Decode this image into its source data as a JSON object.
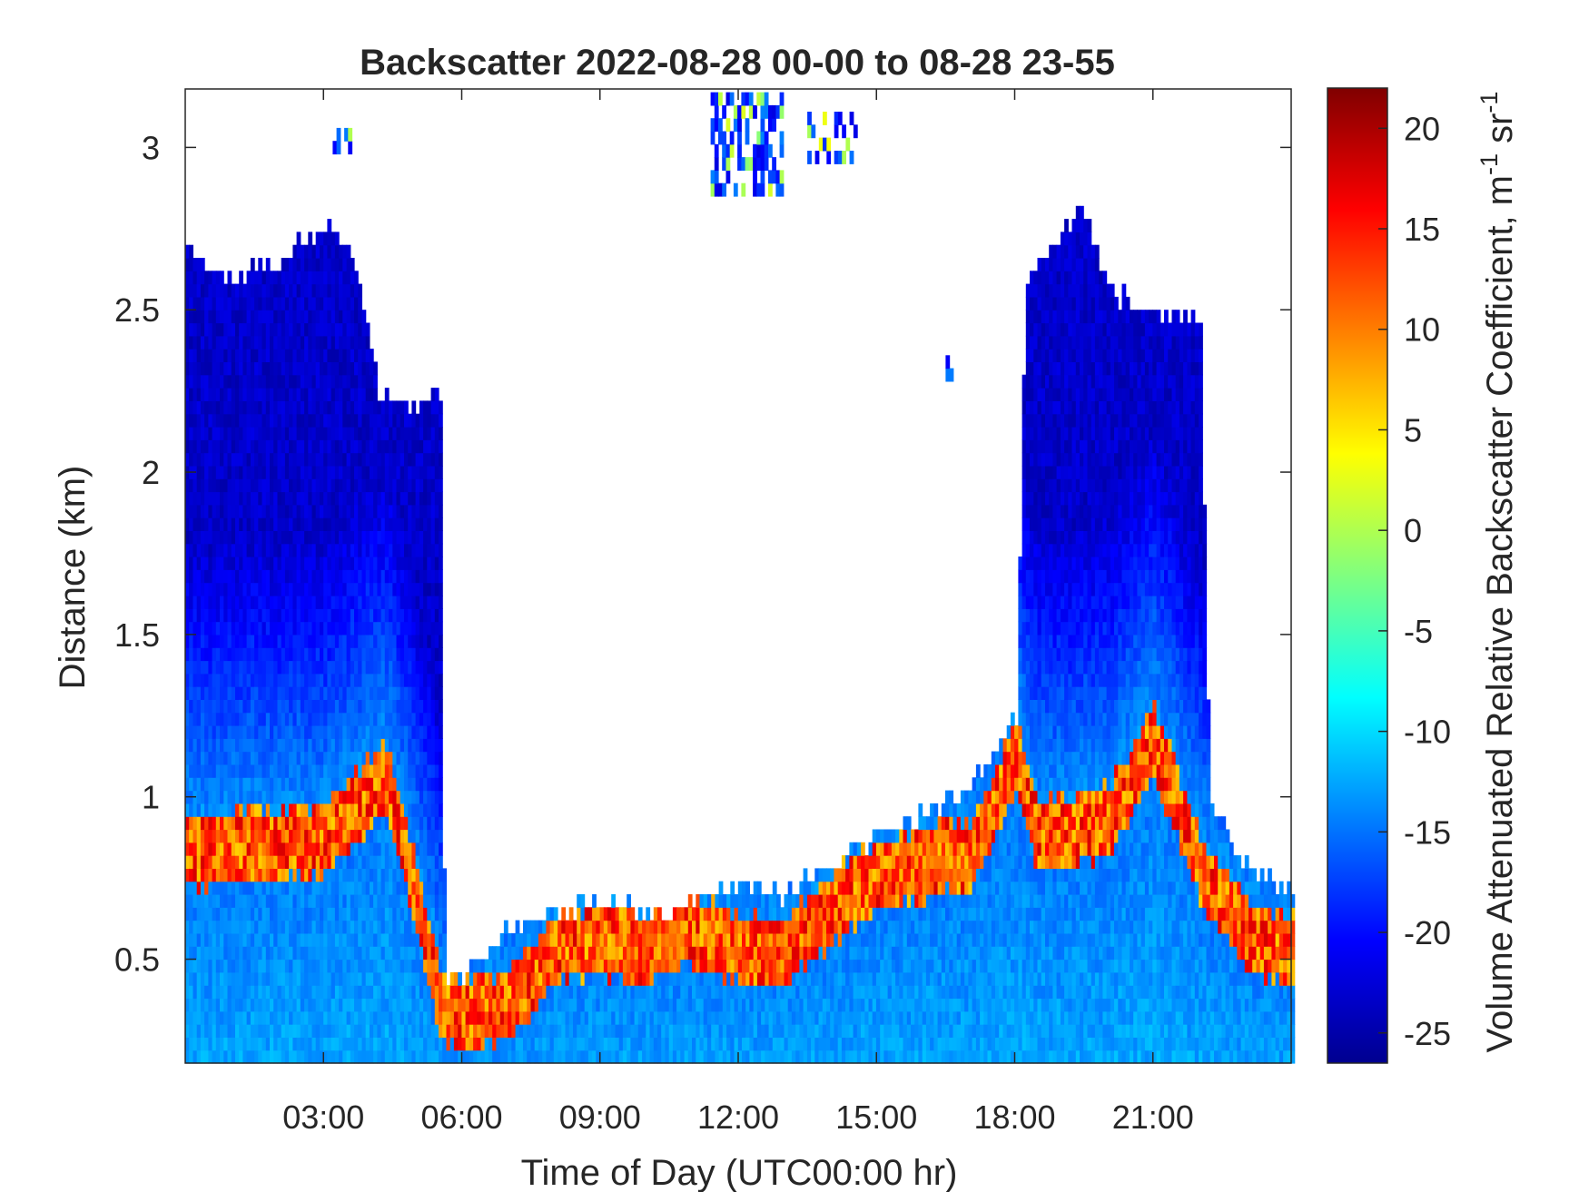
{
  "chart_data": {
    "type": "heatmap",
    "title": "Backscatter 2022-08-28 00-00 to 08-28 23-55",
    "xlabel": "Time of Day (UTC00:00 hr)",
    "ylabel": "Distance (km)",
    "xlim_hours": [
      0,
      24
    ],
    "ylim_km": [
      0.18,
      3.18
    ],
    "x_ticks": [
      {
        "value": 3,
        "label": "03:00"
      },
      {
        "value": 6,
        "label": "06:00"
      },
      {
        "value": 9,
        "label": "09:00"
      },
      {
        "value": 12,
        "label": "12:00"
      },
      {
        "value": 15,
        "label": "15:00"
      },
      {
        "value": 18,
        "label": "18:00"
      },
      {
        "value": 21,
        "label": "21:00"
      }
    ],
    "y_ticks": [
      {
        "value": 0.5,
        "label": "0.5"
      },
      {
        "value": 1,
        "label": "1"
      },
      {
        "value": 1.5,
        "label": "1.5"
      },
      {
        "value": 2,
        "label": "2"
      },
      {
        "value": 2.5,
        "label": "2.5"
      },
      {
        "value": 3,
        "label": "3"
      }
    ],
    "colorbar": {
      "label_main": "Volume Attenuated Relative Backscatter Coefficient, m",
      "label_sup1": "-1",
      "label_mid": " sr",
      "label_sup2": "-1",
      "clim": [
        -26.5,
        22
      ],
      "ticks": [
        {
          "value": 20,
          "label": "20"
        },
        {
          "value": 15,
          "label": "15"
        },
        {
          "value": 10,
          "label": "10"
        },
        {
          "value": 5,
          "label": "5"
        },
        {
          "value": 0,
          "label": "0"
        },
        {
          "value": -5,
          "label": "-5"
        },
        {
          "value": -10,
          "label": "-10"
        },
        {
          "value": -15,
          "label": "-15"
        },
        {
          "value": -20,
          "label": "-20"
        },
        {
          "value": -25,
          "label": "-25"
        }
      ],
      "colormap": "jet"
    },
    "grid": false,
    "time_step_hours": 0.0833,
    "profiles": {
      "description_hours": "approximate signal-top height (km) and boundary-layer top (km) versus hour",
      "signal_top_km": [
        [
          0,
          2.7
        ],
        [
          0.5,
          2.62
        ],
        [
          1,
          2.58
        ],
        [
          1.5,
          2.62
        ],
        [
          2,
          2.6
        ],
        [
          2.5,
          2.7
        ],
        [
          3,
          2.72
        ],
        [
          3.5,
          2.68
        ],
        [
          4,
          2.4
        ],
        [
          4.2,
          2.2
        ],
        [
          5.5,
          2.2
        ],
        [
          5.6,
          0.45
        ],
        [
          6.0,
          0.42
        ],
        [
          7,
          0.58
        ],
        [
          8,
          0.62
        ],
        [
          9,
          0.66
        ],
        [
          10,
          0.62
        ],
        [
          11,
          0.66
        ],
        [
          12,
          0.7
        ],
        [
          13,
          0.68
        ],
        [
          14,
          0.78
        ],
        [
          15,
          0.86
        ],
        [
          16,
          0.92
        ],
        [
          17,
          1.02
        ],
        [
          18,
          1.22
        ],
        [
          18.2,
          2.55
        ],
        [
          19,
          2.72
        ],
        [
          19.4,
          2.82
        ],
        [
          20,
          2.55
        ],
        [
          21,
          2.45
        ],
        [
          22,
          2.45
        ],
        [
          22.2,
          0.95
        ],
        [
          23,
          0.75
        ],
        [
          24,
          0.7
        ]
      ],
      "boundary_layer_top_km": [
        [
          0,
          0.85
        ],
        [
          3,
          0.9
        ],
        [
          4.3,
          1.1
        ],
        [
          5.5,
          0.4
        ],
        [
          6,
          0.35
        ],
        [
          7,
          0.38
        ],
        [
          8,
          0.55
        ],
        [
          9,
          0.58
        ],
        [
          10,
          0.55
        ],
        [
          11,
          0.62
        ],
        [
          12,
          0.55
        ],
        [
          13,
          0.56
        ],
        [
          14,
          0.68
        ],
        [
          15,
          0.78
        ],
        [
          16,
          0.82
        ],
        [
          17,
          0.85
        ],
        [
          18,
          1.15
        ],
        [
          18.5,
          0.9
        ],
        [
          20,
          0.95
        ],
        [
          21,
          1.2
        ],
        [
          22,
          0.8
        ],
        [
          23,
          0.6
        ],
        [
          24,
          0.55
        ]
      ]
    },
    "cloud_patches": [
      {
        "hour_start": 11.4,
        "hour_end": 12.9,
        "km_bottom": 2.85,
        "km_top": 3.15
      },
      {
        "hour_start": 13.5,
        "hour_end": 14.5,
        "km_bottom": 2.95,
        "km_top": 3.08
      },
      {
        "hour_start": 3.2,
        "hour_end": 3.6,
        "km_bottom": 2.98,
        "km_top": 3.03
      },
      {
        "hour_start": 16.5,
        "hour_end": 16.6,
        "km_bottom": 2.28,
        "km_top": 2.35
      }
    ]
  }
}
